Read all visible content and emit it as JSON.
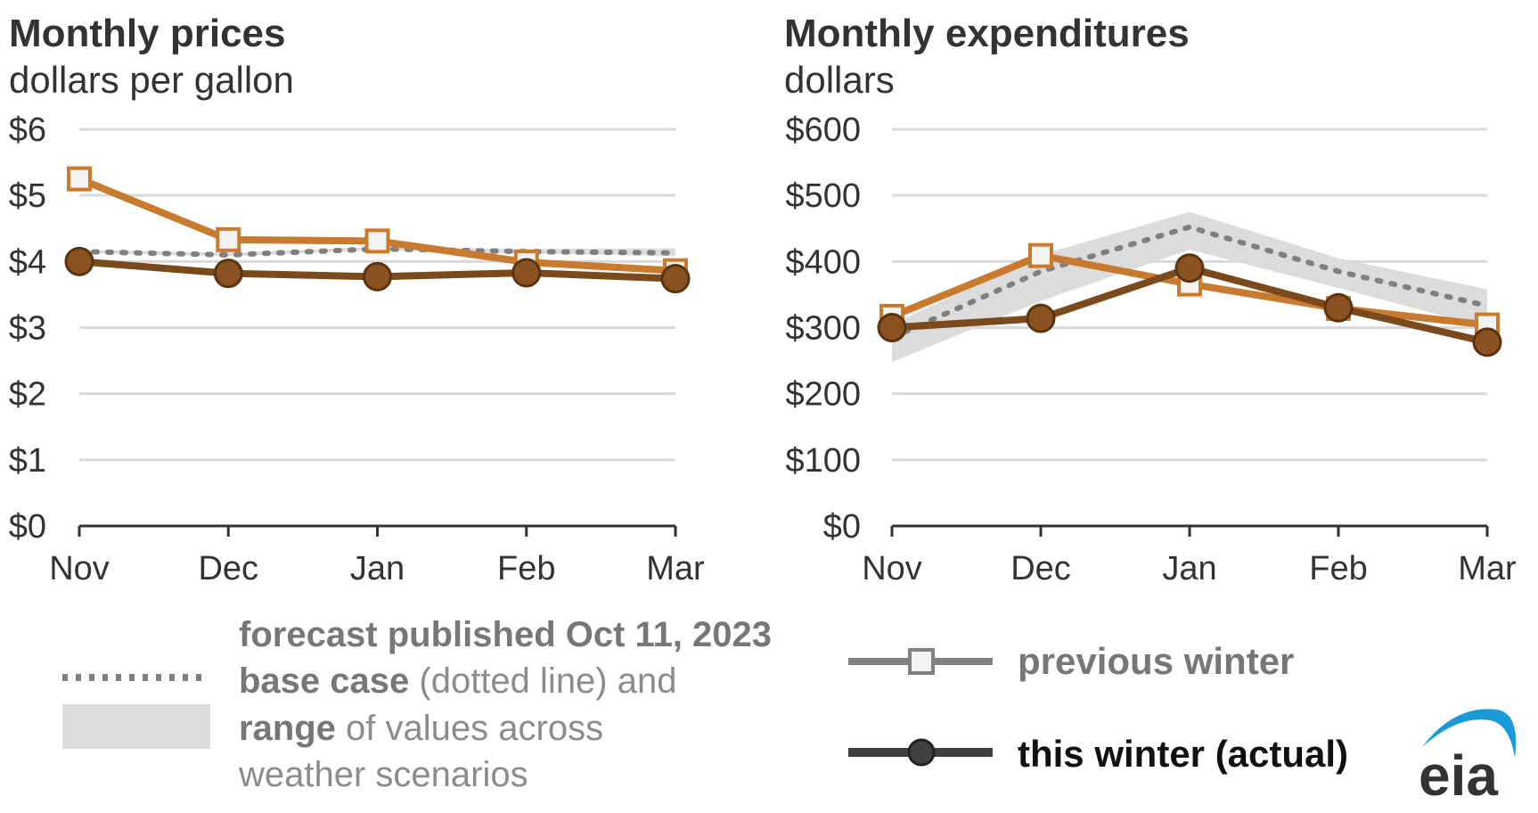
{
  "colors": {
    "previous_winter": "#c87a2f",
    "this_winter_line": "#7a4a1c",
    "this_winter_fill": "#8a5220",
    "base_case": "#808080",
    "range": "#dcdcdc",
    "marker_fill_prev": "#f2f2f2",
    "grid": "#d9d9d9",
    "text": "#333333",
    "logo_blue": "#1a9bd7",
    "logo_text": "#333333"
  },
  "chart_data": [
    {
      "type": "line",
      "title": "Monthly prices",
      "subtitle": "dollars per gallon",
      "categories": [
        "Nov",
        "Dec",
        "Jan",
        "Feb",
        "Mar"
      ],
      "ylim": [
        0,
        6
      ],
      "yticks": [
        0,
        1,
        2,
        3,
        4,
        5,
        6
      ],
      "ytick_labels": [
        "$0",
        "$1",
        "$2",
        "$3",
        "$4",
        "$5",
        "$6"
      ],
      "grid": true,
      "series": [
        {
          "name": "previous winter",
          "values": [
            5.25,
            4.33,
            4.31,
            3.99,
            3.86
          ]
        },
        {
          "name": "this winter (actual)",
          "values": [
            4.0,
            3.82,
            3.77,
            3.83,
            3.74
          ]
        },
        {
          "name": "base case",
          "values": [
            4.15,
            4.1,
            4.19,
            4.15,
            4.13
          ]
        }
      ],
      "range": {
        "lower": [
          4.13,
          4.08,
          4.17,
          4.12,
          4.08
        ],
        "upper": [
          4.18,
          4.13,
          4.22,
          4.19,
          4.2
        ]
      }
    },
    {
      "type": "line",
      "title": "Monthly expenditures",
      "subtitle": "dollars",
      "categories": [
        "Nov",
        "Dec",
        "Jan",
        "Feb",
        "Mar"
      ],
      "ylim": [
        0,
        600
      ],
      "yticks": [
        0,
        100,
        200,
        300,
        400,
        500,
        600
      ],
      "ytick_labels": [
        "$0",
        "$100",
        "$200",
        "$300",
        "$400",
        "$500",
        "$600"
      ],
      "grid": true,
      "series": [
        {
          "name": "previous winter",
          "values": [
            317,
            409,
            366,
            329,
            304
          ]
        },
        {
          "name": "this winter (actual)",
          "values": [
            300,
            314,
            390,
            330,
            278
          ]
        },
        {
          "name": "base case",
          "values": [
            285,
            385,
            452,
            385,
            333
          ]
        }
      ],
      "range": {
        "lower": [
          248,
          340,
          418,
          360,
          300
        ],
        "upper": [
          305,
          410,
          475,
          405,
          358
        ]
      }
    }
  ],
  "legend": {
    "forecast_line1": "forecast published Oct 11, 2023",
    "base_case_bold": "base case",
    "base_case_rest": " (dotted line) and",
    "range_bold": "range",
    "range_rest": " of values across",
    "range_line3": "weather scenarios",
    "previous_winter": "previous winter",
    "this_winter": "this winter (actual)"
  },
  "logo": {
    "text": "eia"
  }
}
